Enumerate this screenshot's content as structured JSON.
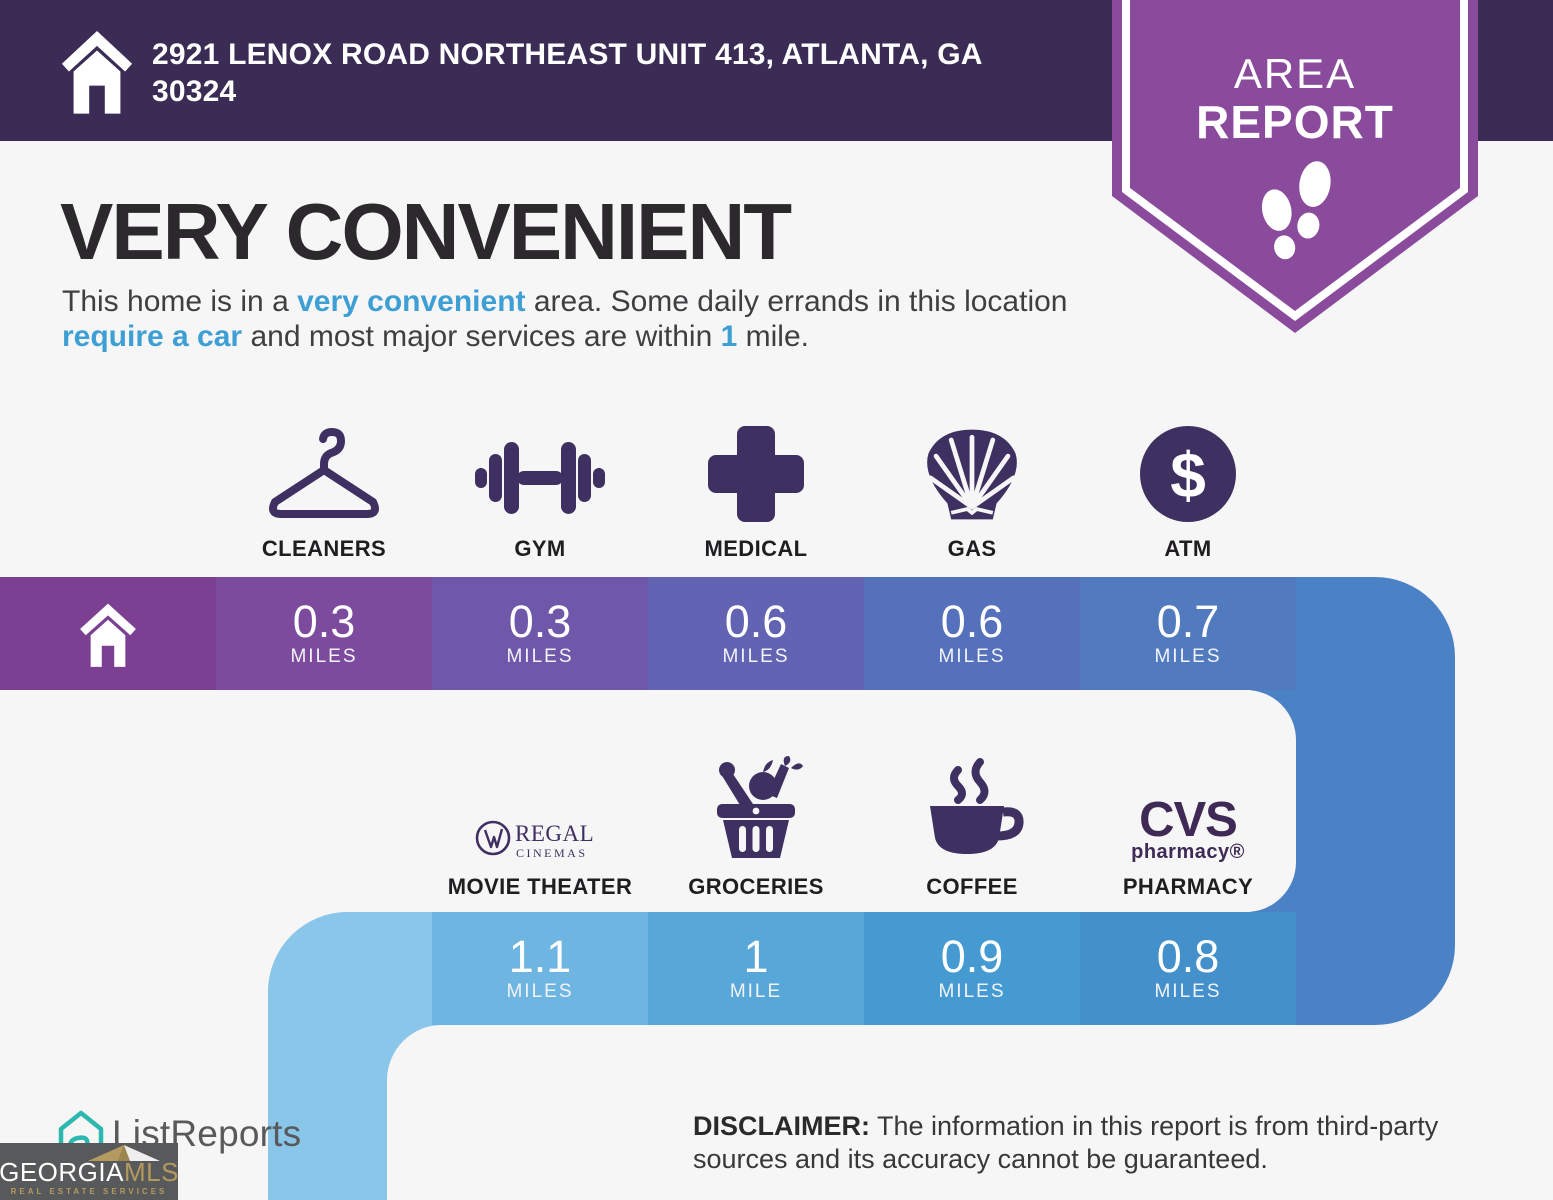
{
  "header": {
    "address": "2921 LENOX ROAD NORTHEAST UNIT 413, ATLANTA, GA 30324"
  },
  "badge": {
    "line1": "AREA",
    "line2": "REPORT"
  },
  "title": "VERY CONVENIENT",
  "intro": {
    "segments": [
      {
        "text": "This home is in a ",
        "style": "normal"
      },
      {
        "text": "very convenient",
        "style": "accent"
      },
      {
        "text": " area. Some daily errands in this location ",
        "style": "normal"
      },
      {
        "text": "require a car",
        "style": "accent"
      },
      {
        "text": " and most major services are within ",
        "style": "normal"
      },
      {
        "text": "1",
        "style": "accent"
      },
      {
        "text": " mile.",
        "style": "normal"
      }
    ]
  },
  "places_row1": [
    {
      "label": "CLEANERS",
      "icon": "hanger-icon",
      "distance": "0.3",
      "unit": "MILES"
    },
    {
      "label": "GYM",
      "icon": "dumbbell-icon",
      "distance": "0.3",
      "unit": "MILES"
    },
    {
      "label": "MEDICAL",
      "icon": "medical-cross-icon",
      "distance": "0.6",
      "unit": "MILES"
    },
    {
      "label": "GAS",
      "icon": "shell-icon",
      "distance": "0.6",
      "unit": "MILES"
    },
    {
      "label": "ATM",
      "icon": "dollar-circle-icon",
      "distance": "0.7",
      "unit": "MILES"
    }
  ],
  "places_row2": [
    {
      "label": "MOVIE THEATER",
      "icon": "regal-cinemas-logo",
      "brand_name": "REGAL",
      "brand_sub": "CINEMAS",
      "distance": "1.1",
      "unit": "MILES"
    },
    {
      "label": "GROCERIES",
      "icon": "grocery-basket-icon",
      "distance": "1",
      "unit": "MILE"
    },
    {
      "label": "COFFEE",
      "icon": "coffee-cup-icon",
      "distance": "0.9",
      "unit": "MILES"
    },
    {
      "label": "PHARMACY",
      "icon": "cvs-pharmacy-logo",
      "brand_name": "CVS",
      "brand_sub": "pharmacy®",
      "distance": "0.8",
      "unit": "MILES"
    }
  ],
  "footer": {
    "listreports": "ListReports",
    "disclaimer_label": "DISCLAIMER:",
    "disclaimer_text": " The information in this report is from third-party sources and its accuracy cannot be guaranteed.",
    "mls_line1_white": "GEORGIA",
    "mls_line1_gold": "MLS",
    "mls_tagline": "REAL ESTATE SERVICES"
  },
  "colors": {
    "header_bg": "#3b2c55",
    "badge_purple": "#8a4b9c",
    "accent_blue": "#3d9fd3",
    "icon_purple": "#3e3161",
    "band1": [
      "#7b4092",
      "#7d4b9d",
      "#6f57a9",
      "#6263b2",
      "#5571bc",
      "#527abf"
    ],
    "elbow_right": "#4a82c5",
    "band2": [
      "#8ac5ea",
      "#6fb5e2",
      "#58a7d9",
      "#449ad1",
      "#4390cb"
    ],
    "cvs_purple": "#3f2a56",
    "listreports_teal": "#2cb8ae",
    "mls_gold": "#b49a5f",
    "mls_bg": "#58595a"
  }
}
